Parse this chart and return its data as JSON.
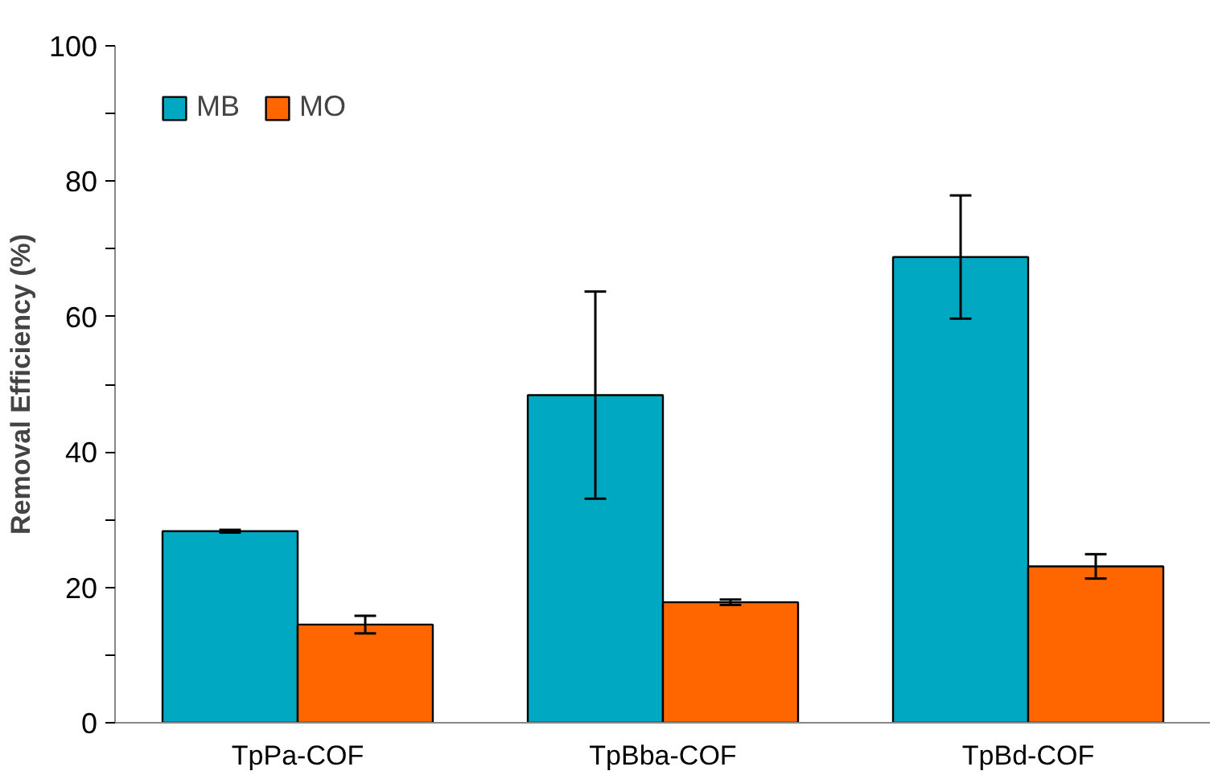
{
  "chart_data": {
    "type": "bar",
    "ylabel": "Removal Efficiency (%)",
    "categories": [
      "TpPa-COF",
      "TpBba-COF",
      "TpBd-COF"
    ],
    "series": [
      {
        "name": "MB",
        "color": "#00a9c1",
        "values": [
          28.3,
          48.4,
          68.8
        ],
        "errors": [
          0.2,
          15.3,
          9.1
        ]
      },
      {
        "name": "MO",
        "color": "#ff6600",
        "values": [
          14.5,
          17.8,
          23.1
        ],
        "errors": [
          1.3,
          0.4,
          1.8
        ]
      }
    ],
    "ylim": [
      0,
      100
    ],
    "yticks": [
      0,
      {
        "value": 10,
        "label": null
      },
      20,
      {
        "value": 30,
        "label": null
      },
      40,
      {
        "value": 50,
        "label": null
      },
      60,
      {
        "value": 70,
        "label": null
      },
      80,
      {
        "value": 90,
        "label": null
      },
      100
    ],
    "grid": false,
    "legend": "top left"
  }
}
